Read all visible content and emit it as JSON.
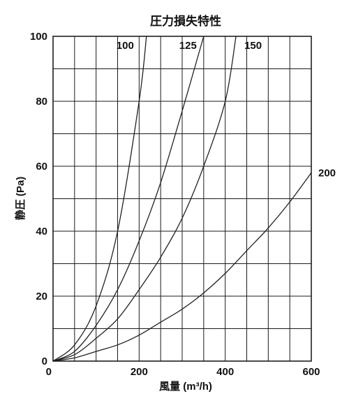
{
  "chart_data": {
    "type": "line",
    "title": "圧力損失特性",
    "xlabel": "風量 (m³/h)",
    "ylabel": "静圧 (Pa)",
    "xlim": [
      0,
      600
    ],
    "ylim": [
      0,
      100
    ],
    "x_ticks": [
      "0",
      "200",
      "400",
      "600"
    ],
    "y_ticks": [
      "0",
      "20",
      "40",
      "60",
      "80",
      "100"
    ],
    "grid": true,
    "x_grid_step": 50,
    "y_grid_step": 10,
    "series": [
      {
        "name": "100",
        "points": [
          [
            0,
            0
          ],
          [
            50,
            5
          ],
          [
            100,
            17
          ],
          [
            150,
            40
          ],
          [
            200,
            80
          ],
          [
            217,
            100
          ]
        ]
      },
      {
        "name": "125",
        "points": [
          [
            0,
            0
          ],
          [
            50,
            3
          ],
          [
            100,
            11
          ],
          [
            150,
            22
          ],
          [
            200,
            37
          ],
          [
            250,
            55
          ],
          [
            300,
            77
          ],
          [
            350,
            100
          ]
        ]
      },
      {
        "name": "150",
        "points": [
          [
            0,
            0
          ],
          [
            50,
            2
          ],
          [
            100,
            7
          ],
          [
            150,
            13
          ],
          [
            200,
            22
          ],
          [
            250,
            32
          ],
          [
            300,
            44
          ],
          [
            350,
            60
          ],
          [
            400,
            80
          ],
          [
            425,
            100
          ]
        ]
      },
      {
        "name": "200",
        "points": [
          [
            0,
            0
          ],
          [
            50,
            1
          ],
          [
            100,
            3
          ],
          [
            150,
            5
          ],
          [
            200,
            8
          ],
          [
            250,
            12
          ],
          [
            300,
            16
          ],
          [
            350,
            21
          ],
          [
            400,
            27
          ],
          [
            450,
            34
          ],
          [
            500,
            41
          ],
          [
            550,
            49
          ],
          [
            600,
            58
          ]
        ]
      }
    ]
  }
}
